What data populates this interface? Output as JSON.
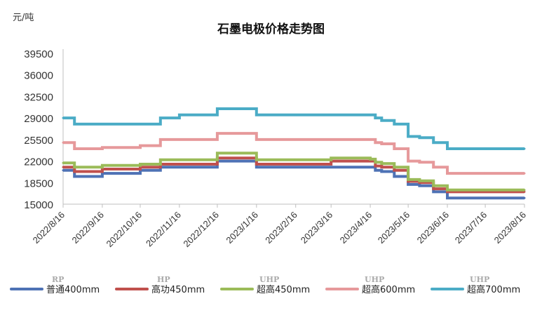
{
  "chart_data": {
    "type": "line",
    "title": "石墨电极价格走势图",
    "ylabel": "元/吨",
    "ylim": [
      15000,
      39500
    ],
    "yticks": [
      "39500",
      "36000",
      "32500",
      "29000",
      "25500",
      "22000",
      "18500",
      "15000"
    ],
    "xticks": [
      "2022/8/16",
      "2022/9/16",
      "2022/10/16",
      "2022/11/16",
      "2022/12/16",
      "2023/1/16",
      "2023/2/16",
      "2023/3/16",
      "2023/4/16",
      "2023/5/16",
      "2023/6/16",
      "2023/7/16",
      "2023/8/16"
    ],
    "x": [
      "2022/8/16",
      "2022/8/25",
      "2022/9/16",
      "2022/10/16",
      "2022/11/1",
      "2022/11/16",
      "2022/12/16",
      "2023/1/10",
      "2023/1/16",
      "2023/2/16",
      "2023/3/10",
      "2023/3/16",
      "2023/4/16",
      "2023/4/20",
      "2023/4/25",
      "2023/5/5",
      "2023/5/16",
      "2023/5/25",
      "2023/6/5",
      "2023/6/16",
      "2023/7/16",
      "2023/8/16"
    ],
    "series": [
      {
        "name": "普通400mm",
        "sub": "RP",
        "color": "#4e72b5",
        "values": [
          20500,
          19500,
          20000,
          20500,
          21000,
          21000,
          22000,
          22000,
          21000,
          21000,
          21000,
          21000,
          21000,
          20500,
          20300,
          19500,
          18200,
          18000,
          17000,
          16000,
          16000,
          16000
        ]
      },
      {
        "name": "高功450mm",
        "sub": "HP",
        "color": "#c0504d",
        "values": [
          21000,
          20300,
          20700,
          21000,
          21500,
          21500,
          22500,
          22500,
          21500,
          21500,
          21500,
          22000,
          22000,
          21200,
          21000,
          20500,
          18700,
          18500,
          17500,
          17000,
          17000,
          17000
        ]
      },
      {
        "name": "超高450mm",
        "sub": "UHP",
        "color": "#9bbb59",
        "values": [
          21700,
          21000,
          21300,
          21500,
          22200,
          22200,
          23300,
          23300,
          22200,
          22200,
          22200,
          22500,
          22300,
          21800,
          21600,
          21000,
          19000,
          18800,
          18000,
          17300,
          17300,
          17300
        ]
      },
      {
        "name": "超高600mm",
        "sub": "UHP",
        "color": "#e6999b",
        "values": [
          25000,
          24000,
          24200,
          24500,
          25500,
          25500,
          26500,
          26500,
          25500,
          25500,
          25500,
          25500,
          25500,
          25000,
          24800,
          24000,
          22000,
          21800,
          21000,
          20000,
          20000,
          20000
        ]
      },
      {
        "name": "超高700mm",
        "sub": "UHP",
        "color": "#4bacc6",
        "values": [
          29000,
          28000,
          28000,
          28000,
          29000,
          29500,
          30500,
          30500,
          29500,
          29500,
          29500,
          29500,
          29500,
          29000,
          28600,
          28000,
          26000,
          25800,
          25000,
          24000,
          24000,
          24000
        ]
      }
    ]
  }
}
